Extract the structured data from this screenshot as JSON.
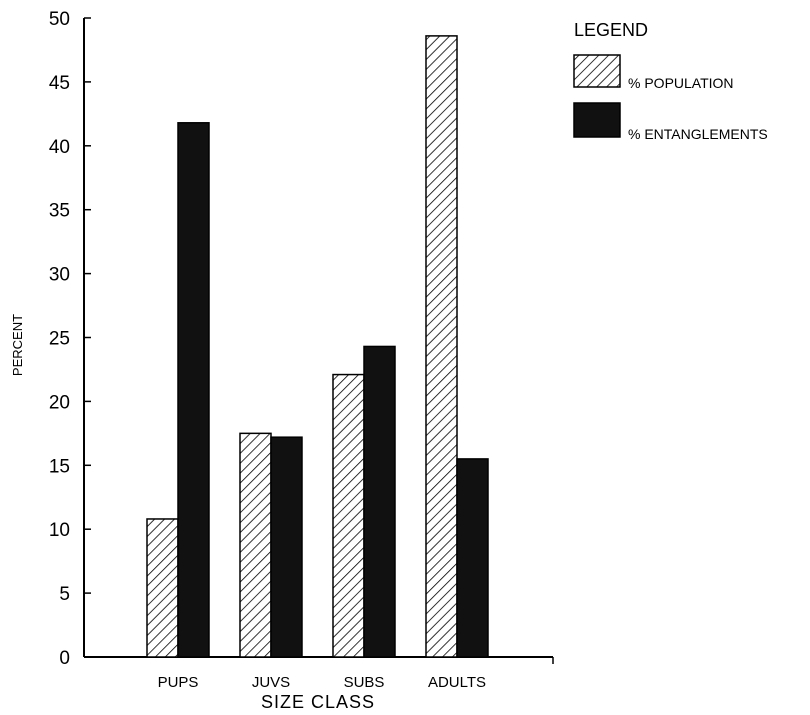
{
  "chart_data": {
    "type": "bar",
    "categories": [
      "PUPS",
      "JUVS",
      "SUBS",
      "ADULTS"
    ],
    "series": [
      {
        "name": "% POPULATION",
        "values": [
          10.8,
          17.5,
          22.1,
          48.6
        ],
        "pattern": "hatch"
      },
      {
        "name": "% ENTANGLEMENTS",
        "values": [
          41.8,
          17.2,
          24.3,
          15.5
        ],
        "pattern": "solid"
      }
    ],
    "xlabel": "SIZE CLASS",
    "ylabel": "PERCENT",
    "ylim": [
      0,
      50
    ],
    "yticks": [
      "0",
      "5",
      "10",
      "15",
      "20",
      "25",
      "30",
      "35",
      "40",
      "45",
      "50"
    ],
    "legend": {
      "title": "LEGEND",
      "position": "top-right"
    },
    "colors": {
      "ink": "#000000",
      "dark_fill": "#111111"
    },
    "grid": false
  }
}
